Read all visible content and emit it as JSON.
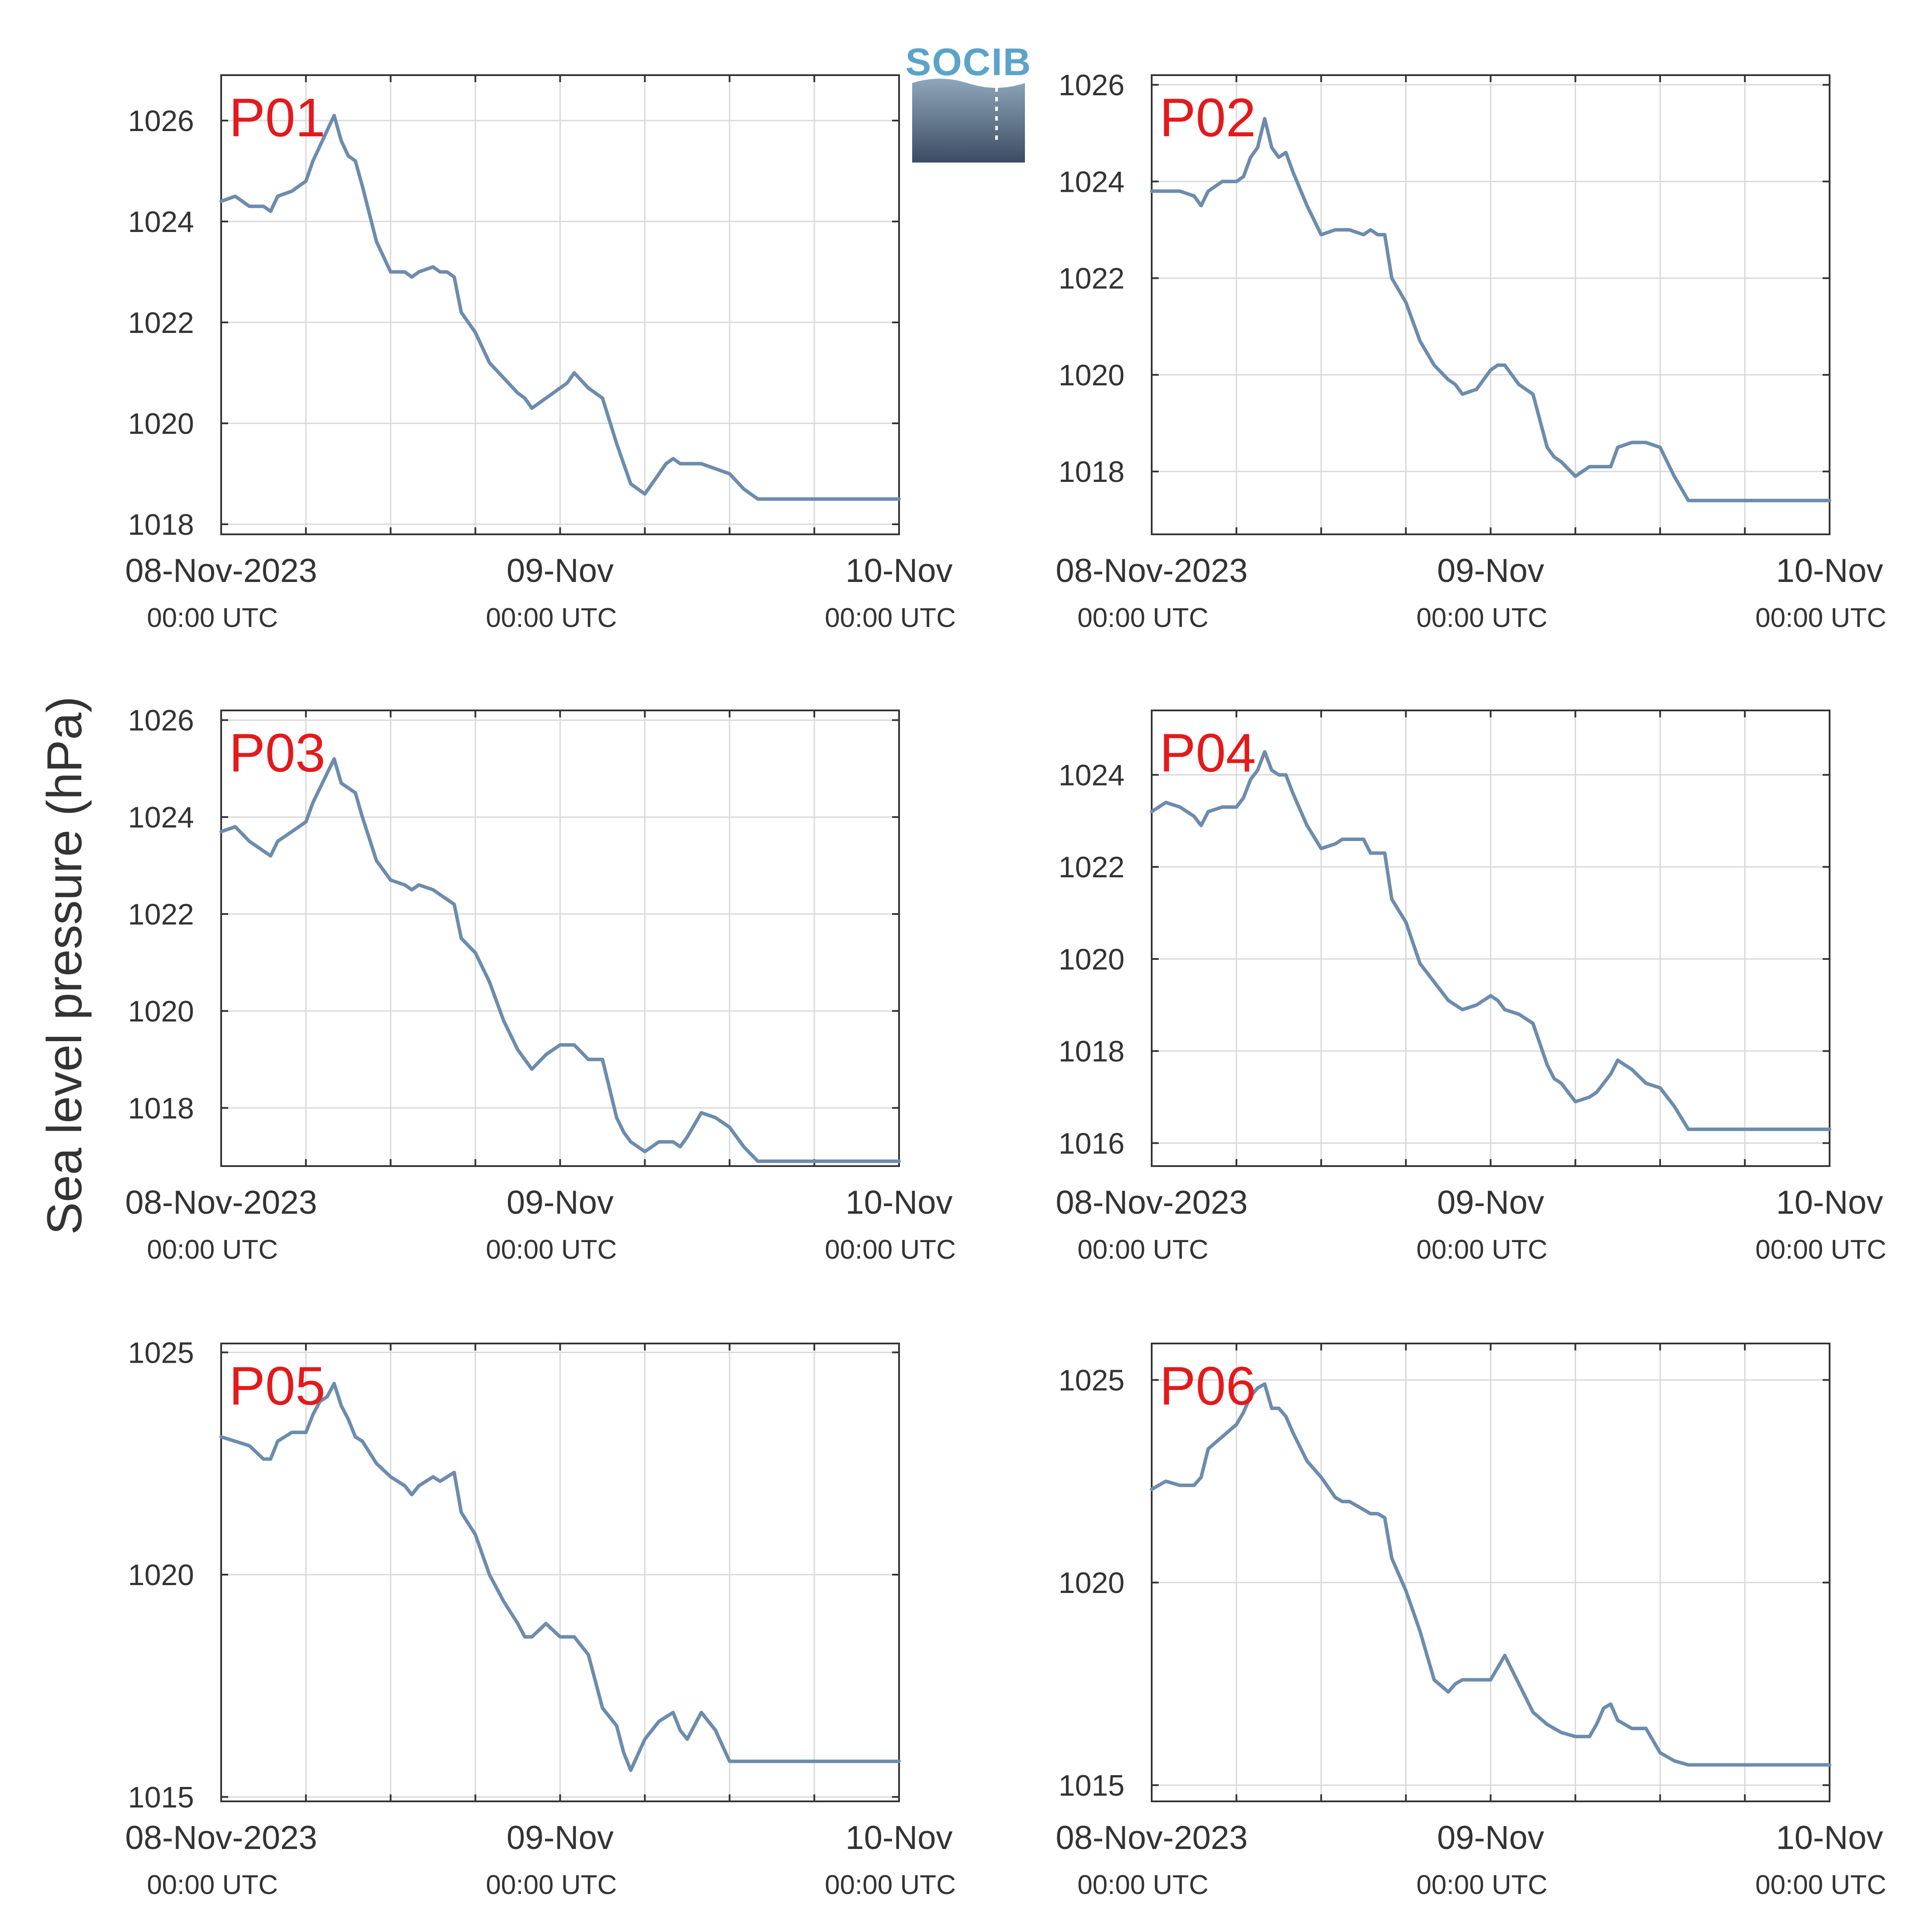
{
  "figure": {
    "ylabel": "Sea level pressure (hPa)",
    "logo_text": "SOCIB",
    "colors": {
      "line": "#6d8cad",
      "panel_label": "#e31a1c",
      "axis": "#333333",
      "grid": "#d9d9d9",
      "tick_text": "#333333",
      "logo_text": "#5ba3c9",
      "logo_top": "#8fa6bb",
      "logo_bottom": "#3b4c63"
    }
  },
  "chart_data": [
    {
      "type": "line",
      "panel_label": "P01",
      "x_ticks": [
        "08-Nov-2023",
        "09-Nov",
        "10-Nov"
      ],
      "x_tick_sublabels": [
        "00:00 UTC",
        "00:00 UTC",
        "00:00 UTC"
      ],
      "y_ticks": [
        "1018",
        "1020",
        "1022",
        "1024",
        "1026"
      ],
      "xlim_hours": [
        0,
        48
      ],
      "ylim": [
        1017.8,
        1026.9
      ],
      "grid": true,
      "series": [
        {
          "x": [
            0,
            1,
            2,
            3,
            3.5,
            4,
            5,
            6,
            6.5,
            7,
            7.5,
            8,
            8.5,
            9,
            9.5,
            10,
            11,
            12,
            13,
            13.5,
            14,
            15,
            15.5,
            16,
            16.5,
            17,
            18,
            19,
            20,
            21,
            21.5,
            22,
            23,
            24,
            24.5,
            25,
            26,
            27,
            28,
            28.5,
            29,
            30,
            31,
            31.5,
            32,
            32.5,
            33,
            34,
            35,
            36,
            37,
            38,
            38.5,
            39,
            40,
            41,
            42,
            43,
            44,
            45,
            46,
            47,
            48
          ],
          "y": [
            1024.4,
            1024.5,
            1024.3,
            1024.3,
            1024.2,
            1024.5,
            1024.6,
            1024.8,
            1025.2,
            1025.5,
            1025.8,
            1026.1,
            1025.6,
            1025.3,
            1025.2,
            1024.7,
            1023.6,
            1023.0,
            1023.0,
            1022.9,
            1023.0,
            1023.1,
            1023.0,
            1023.0,
            1022.9,
            1022.2,
            1021.8,
            1021.2,
            1020.9,
            1020.6,
            1020.5,
            1020.3,
            1020.5,
            1020.7,
            1020.8,
            1021.0,
            1020.7,
            1020.5,
            1019.6,
            1019.2,
            1018.8,
            1018.6,
            1019.0,
            1019.2,
            1019.3,
            1019.2,
            1019.2,
            1019.2,
            1019.1,
            1019.0,
            1018.7,
            1018.5,
            1018.5,
            1018.5,
            1018.5,
            1018.5,
            1018.5,
            1018.5,
            1018.5,
            1018.5,
            1018.5,
            1018.5,
            1018.5
          ]
        }
      ]
    },
    {
      "type": "line",
      "panel_label": "P02",
      "x_ticks": [
        "08-Nov-2023",
        "09-Nov",
        "10-Nov"
      ],
      "x_tick_sublabels": [
        "00:00 UTC",
        "00:00 UTC",
        "00:00 UTC"
      ],
      "y_ticks": [
        "1018",
        "1020",
        "1022",
        "1024",
        "1026"
      ],
      "xlim_hours": [
        0,
        48
      ],
      "ylim": [
        1016.7,
        1026.2
      ],
      "grid": true,
      "series": [
        {
          "x": [
            0,
            1,
            2,
            3,
            3.5,
            4,
            5,
            6,
            6.5,
            7,
            7.5,
            8,
            8.5,
            9,
            9.5,
            10,
            11,
            12,
            13,
            13.5,
            14,
            15,
            15.5,
            16,
            16.5,
            17,
            18,
            19,
            20,
            21,
            21.5,
            22,
            23,
            24,
            24.5,
            25,
            26,
            27,
            28,
            28.5,
            29,
            30,
            31,
            31.5,
            32,
            32.5,
            33,
            34,
            35,
            36,
            37,
            38,
            38.5,
            39,
            40,
            41,
            42,
            43,
            44,
            45,
            46,
            47,
            48
          ],
          "y": [
            1023.8,
            1023.8,
            1023.8,
            1023.7,
            1023.5,
            1023.8,
            1024.0,
            1024.0,
            1024.1,
            1024.5,
            1024.7,
            1025.3,
            1024.7,
            1024.5,
            1024.6,
            1024.2,
            1023.5,
            1022.9,
            1023.0,
            1023.0,
            1023.0,
            1022.9,
            1023.0,
            1022.9,
            1022.9,
            1022.0,
            1021.5,
            1020.7,
            1020.2,
            1019.9,
            1019.8,
            1019.6,
            1019.7,
            1020.1,
            1020.2,
            1020.2,
            1019.8,
            1019.6,
            1018.5,
            1018.3,
            1018.2,
            1017.9,
            1018.1,
            1018.1,
            1018.1,
            1018.1,
            1018.5,
            1018.6,
            1018.6,
            1018.5,
            1017.9,
            1017.4,
            1017.4,
            1017.4,
            1017.4,
            1017.4,
            1017.4,
            1017.4,
            1017.4,
            1017.4,
            1017.4,
            1017.4,
            1017.4
          ]
        }
      ]
    },
    {
      "type": "line",
      "panel_label": "P03",
      "x_ticks": [
        "08-Nov-2023",
        "09-Nov",
        "10-Nov"
      ],
      "x_tick_sublabels": [
        "00:00 UTC",
        "00:00 UTC",
        "00:00 UTC"
      ],
      "y_ticks": [
        "1018",
        "1020",
        "1022",
        "1024",
        "1026"
      ],
      "xlim_hours": [
        0,
        48
      ],
      "ylim": [
        1016.8,
        1026.2
      ],
      "grid": true,
      "series": [
        {
          "x": [
            0,
            1,
            2,
            3,
            3.5,
            4,
            5,
            6,
            6.5,
            7,
            7.5,
            8,
            8.5,
            9,
            9.5,
            10,
            11,
            12,
            13,
            13.5,
            14,
            15,
            15.5,
            16,
            16.5,
            17,
            18,
            19,
            20,
            21,
            21.5,
            22,
            23,
            24,
            24.5,
            25,
            26,
            27,
            28,
            28.5,
            29,
            30,
            31,
            31.5,
            32,
            32.5,
            33,
            34,
            35,
            36,
            37,
            38,
            38.5,
            39,
            40,
            41,
            42,
            43,
            44,
            45,
            46,
            47,
            48
          ],
          "y": [
            1023.7,
            1023.8,
            1023.5,
            1023.3,
            1023.2,
            1023.5,
            1023.7,
            1023.9,
            1024.3,
            1024.6,
            1024.9,
            1025.2,
            1024.7,
            1024.6,
            1024.5,
            1024.0,
            1023.1,
            1022.7,
            1022.6,
            1022.5,
            1022.6,
            1022.5,
            1022.4,
            1022.3,
            1022.2,
            1021.5,
            1021.2,
            1020.6,
            1019.8,
            1019.2,
            1019.0,
            1018.8,
            1019.1,
            1019.3,
            1019.3,
            1019.3,
            1019.0,
            1019.0,
            1017.8,
            1017.5,
            1017.3,
            1017.1,
            1017.3,
            1017.3,
            1017.3,
            1017.2,
            1017.4,
            1017.9,
            1017.8,
            1017.6,
            1017.2,
            1016.9,
            1016.9,
            1016.9,
            1016.9,
            1016.9,
            1016.9,
            1016.9,
            1016.9,
            1016.9,
            1016.9,
            1016.9,
            1016.9
          ]
        }
      ]
    },
    {
      "type": "line",
      "panel_label": "P04",
      "x_ticks": [
        "08-Nov-2023",
        "09-Nov",
        "10-Nov"
      ],
      "x_tick_sublabels": [
        "00:00 UTC",
        "00:00 UTC",
        "00:00 UTC"
      ],
      "y_ticks": [
        "1016",
        "1018",
        "1020",
        "1022",
        "1024"
      ],
      "xlim_hours": [
        0,
        48
      ],
      "ylim": [
        1015.5,
        1025.4
      ],
      "grid": true,
      "series": [
        {
          "x": [
            0,
            1,
            2,
            3,
            3.5,
            4,
            5,
            6,
            6.5,
            7,
            7.5,
            8,
            8.5,
            9,
            9.5,
            10,
            11,
            12,
            13,
            13.5,
            14,
            15,
            15.5,
            16,
            16.5,
            17,
            18,
            19,
            20,
            21,
            21.5,
            22,
            23,
            24,
            24.5,
            25,
            26,
            27,
            28,
            28.5,
            29,
            30,
            31,
            31.5,
            32,
            32.5,
            33,
            34,
            35,
            36,
            37,
            38,
            38.5,
            39,
            40,
            41,
            42,
            43,
            44,
            45,
            46,
            47,
            48
          ],
          "y": [
            1023.2,
            1023.4,
            1023.3,
            1023.1,
            1022.9,
            1023.2,
            1023.3,
            1023.3,
            1023.5,
            1023.9,
            1024.1,
            1024.5,
            1024.1,
            1024.0,
            1024.0,
            1023.6,
            1022.9,
            1022.4,
            1022.5,
            1022.6,
            1022.6,
            1022.6,
            1022.3,
            1022.3,
            1022.3,
            1021.3,
            1020.8,
            1019.9,
            1019.5,
            1019.1,
            1019.0,
            1018.9,
            1019.0,
            1019.2,
            1019.1,
            1018.9,
            1018.8,
            1018.6,
            1017.7,
            1017.4,
            1017.3,
            1016.9,
            1017.0,
            1017.1,
            1017.3,
            1017.5,
            1017.8,
            1017.6,
            1017.3,
            1017.2,
            1016.8,
            1016.3,
            1016.3,
            1016.3,
            1016.3,
            1016.3,
            1016.3,
            1016.3,
            1016.3,
            1016.3,
            1016.3,
            1016.3,
            1016.3
          ]
        }
      ]
    },
    {
      "type": "line",
      "panel_label": "P05",
      "x_ticks": [
        "08-Nov-2023",
        "09-Nov",
        "10-Nov"
      ],
      "x_tick_sublabels": [
        "00:00 UTC",
        "00:00 UTC",
        "00:00 UTC"
      ],
      "y_ticks": [
        "1015",
        "1020",
        "1025"
      ],
      "xlim_hours": [
        0,
        48
      ],
      "ylim": [
        1014.9,
        1025.2
      ],
      "grid": true,
      "series": [
        {
          "x": [
            0,
            1,
            2,
            3,
            3.5,
            4,
            5,
            6,
            6.5,
            7,
            7.5,
            8,
            8.5,
            9,
            9.5,
            10,
            11,
            12,
            13,
            13.5,
            14,
            15,
            15.5,
            16,
            16.5,
            17,
            18,
            19,
            20,
            21,
            21.5,
            22,
            23,
            24,
            24.5,
            25,
            26,
            27,
            28,
            28.5,
            29,
            30,
            31,
            31.5,
            32,
            32.5,
            33,
            34,
            35,
            36,
            37,
            38,
            38.5,
            39,
            40,
            41,
            42,
            43,
            44,
            45,
            46,
            47,
            48
          ],
          "y": [
            1023.1,
            1023.0,
            1022.9,
            1022.6,
            1022.6,
            1023.0,
            1023.2,
            1023.2,
            1023.6,
            1023.9,
            1024.0,
            1024.3,
            1023.8,
            1023.5,
            1023.1,
            1023.0,
            1022.5,
            1022.2,
            1022.0,
            1021.8,
            1022.0,
            1022.2,
            1022.1,
            1022.2,
            1022.3,
            1021.4,
            1020.9,
            1020.0,
            1019.4,
            1018.9,
            1018.6,
            1018.6,
            1018.9,
            1018.6,
            1018.6,
            1018.6,
            1018.2,
            1017.0,
            1016.6,
            1016.0,
            1015.6,
            1016.3,
            1016.7,
            1016.8,
            1016.9,
            1016.5,
            1016.3,
            1016.9,
            1016.5,
            1015.8,
            1015.8,
            1015.8,
            1015.8,
            1015.8,
            1015.8,
            1015.8,
            1015.8,
            1015.8,
            1015.8,
            1015.8,
            1015.8,
            1015.8,
            1015.8
          ]
        }
      ]
    },
    {
      "type": "line",
      "panel_label": "P06",
      "x_ticks": [
        "08-Nov-2023",
        "09-Nov",
        "10-Nov"
      ],
      "x_tick_sublabels": [
        "00:00 UTC",
        "00:00 UTC",
        "00:00 UTC"
      ],
      "y_ticks": [
        "1015",
        "1020",
        "1025"
      ],
      "xlim_hours": [
        0,
        48
      ],
      "ylim": [
        1014.6,
        1025.9
      ],
      "grid": true,
      "series": [
        {
          "x": [
            0,
            1,
            2,
            3,
            3.5,
            4,
            5,
            6,
            6.5,
            7,
            7.5,
            8,
            8.5,
            9,
            9.5,
            10,
            11,
            12,
            13,
            13.5,
            14,
            15,
            15.5,
            16,
            16.5,
            17,
            18,
            19,
            20,
            21,
            21.5,
            22,
            23,
            24,
            24.5,
            25,
            26,
            27,
            28,
            28.5,
            29,
            30,
            31,
            31.5,
            32,
            32.5,
            33,
            34,
            35,
            36,
            37,
            38,
            38.5,
            39,
            40,
            41,
            42,
            43,
            44,
            45,
            46,
            47,
            48
          ],
          "y": [
            1022.3,
            1022.5,
            1022.4,
            1022.4,
            1022.6,
            1023.3,
            1023.6,
            1023.9,
            1024.2,
            1024.6,
            1024.8,
            1024.9,
            1024.3,
            1024.3,
            1024.1,
            1023.7,
            1023.0,
            1022.6,
            1022.1,
            1022.0,
            1022.0,
            1021.8,
            1021.7,
            1021.7,
            1021.6,
            1020.6,
            1019.8,
            1018.8,
            1017.6,
            1017.3,
            1017.5,
            1017.6,
            1017.6,
            1017.6,
            1017.9,
            1018.2,
            1017.5,
            1016.8,
            1016.5,
            1016.4,
            1016.3,
            1016.2,
            1016.2,
            1016.5,
            1016.9,
            1017.0,
            1016.6,
            1016.4,
            1016.4,
            1015.8,
            1015.6,
            1015.5,
            1015.5,
            1015.5,
            1015.5,
            1015.5,
            1015.5,
            1015.5,
            1015.5,
            1015.5,
            1015.5,
            1015.5,
            1015.5
          ]
        }
      ]
    }
  ]
}
